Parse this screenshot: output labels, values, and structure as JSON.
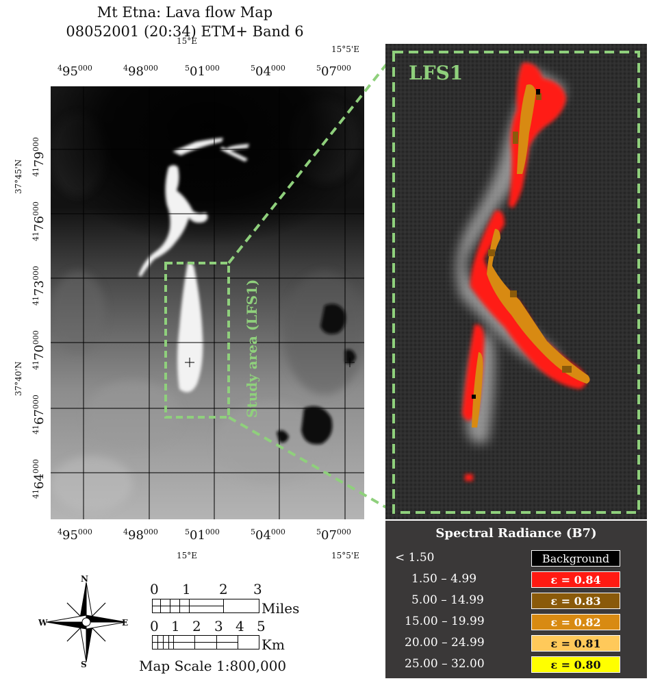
{
  "title": {
    "line1": "Mt Etna: Lava flow Map",
    "line2": "08052001 (20:34) ETM+ Band 6"
  },
  "graticule": {
    "easting_labels": [
      {
        "pre": "4",
        "main": "95",
        "sup": "000"
      },
      {
        "pre": "4",
        "main": "98",
        "sup": "000"
      },
      {
        "pre": "5",
        "main": "01",
        "sup": "000"
      },
      {
        "pre": "5",
        "main": "04",
        "sup": "000"
      },
      {
        "pre": "5",
        "main": "07",
        "sup": "000"
      }
    ],
    "northing_labels": [
      {
        "pre": "41",
        "main": "79",
        "sup": "000"
      },
      {
        "pre": "41",
        "main": "76",
        "sup": "000"
      },
      {
        "pre": "41",
        "main": "73",
        "sup": "000"
      },
      {
        "pre": "41",
        "main": "70",
        "sup": "000"
      },
      {
        "pre": "41",
        "main": "67",
        "sup": "000"
      },
      {
        "pre": "41",
        "main": "64",
        "sup": "000"
      }
    ],
    "lon_labels": [
      "15°E",
      "15°5'E"
    ],
    "lat_labels": [
      "37°45'N",
      "37°40'N"
    ]
  },
  "study_area_label": "Study area (LFS1)",
  "detail_label": "LFS1",
  "accent_color": "#8fd07c",
  "legend": {
    "title": "Spectral Radiance (B7)",
    "rows": [
      {
        "range": "< 1.50",
        "label": "Background",
        "color": "#000000",
        "text_color": "#ffffff"
      },
      {
        "range": "1.50 – 4.99",
        "label": "ε = 0.84",
        "color": "#ff1a12",
        "text_color": "#ffffff"
      },
      {
        "range": "5.00 – 14.99",
        "label": "ε = 0.83",
        "color": "#8a5a0a",
        "text_color": "#ffffff"
      },
      {
        "range": "15.00 – 19.99",
        "label": "ε = 0.82",
        "color": "#d88a12",
        "text_color": "#ffffff"
      },
      {
        "range": "20.00 – 24.99",
        "label": "ε = 0.81",
        "color": "#ffc95a",
        "text_color": "#111111"
      },
      {
        "range": "25.00 – 32.00",
        "label": "ε = 0.80",
        "color": "#ffff00",
        "text_color": "#111111"
      }
    ]
  },
  "compass": {
    "n": "N",
    "s": "S",
    "e": "E",
    "w": "W"
  },
  "scale_bars": {
    "miles_ticks": [
      "0",
      "1",
      "2",
      "3"
    ],
    "miles_unit": "Miles",
    "km_ticks": [
      "0",
      "1",
      "2",
      "3",
      "4",
      "5"
    ],
    "km_unit": "Km",
    "map_scale": "Map Scale 1:800,000"
  }
}
